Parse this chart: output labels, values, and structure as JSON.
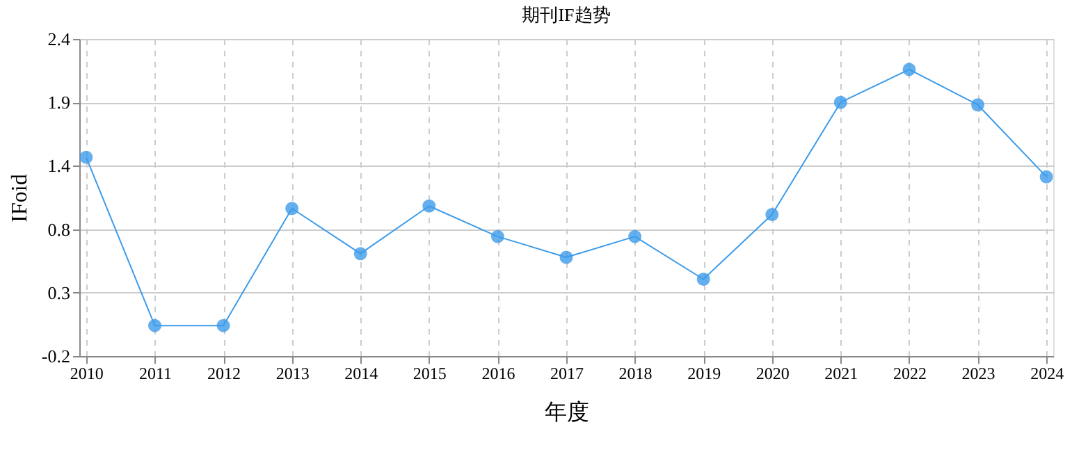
{
  "chart_data": {
    "type": "line",
    "title": "期刊IF趋势",
    "xlabel": "年度",
    "ylabel": "IFoid",
    "categories": [
      "2010",
      "2011",
      "2012",
      "2013",
      "2014",
      "2015",
      "2016",
      "2017",
      "2018",
      "2019",
      "2020",
      "2021",
      "2022",
      "2023",
      "2024"
    ],
    "series": [
      {
        "color": "#3d9be9",
        "values": [
          1.43,
          0.05,
          0.05,
          1.01,
          0.64,
          1.03,
          0.78,
          0.61,
          0.78,
          0.43,
          0.96,
          1.88,
          2.15,
          1.86,
          1.27
        ]
      }
    ],
    "ylim": [
      -0.2,
      2.4
    ],
    "yticks": [
      -0.2,
      {
        "value": 0.32,
        "label": "0.3"
      },
      {
        "value": 0.84,
        "label": "0.8"
      },
      {
        "value": 1.36,
        "label": "1.4"
      },
      {
        "value": 1.88,
        "label": "1.9"
      },
      2.4
    ],
    "grid": true,
    "marker": "circle",
    "line_style": "solid"
  }
}
